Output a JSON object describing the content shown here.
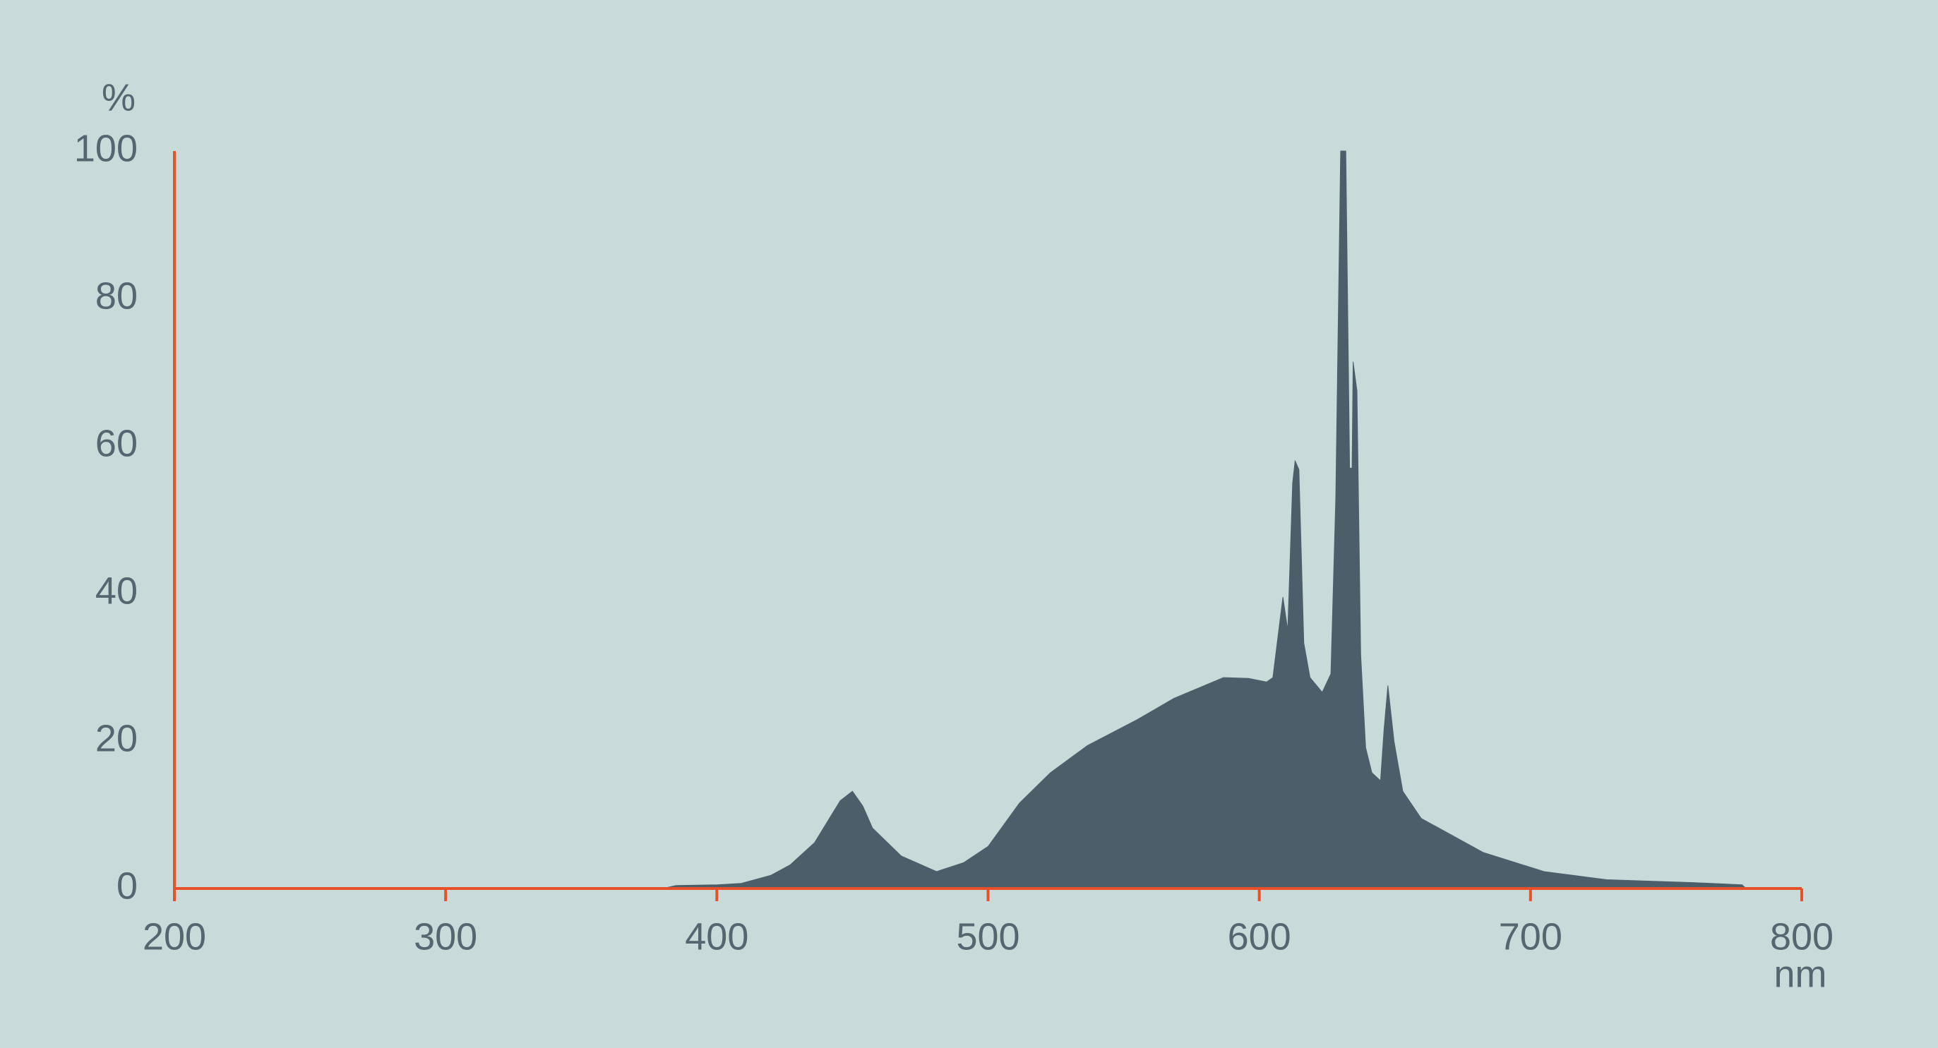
{
  "chart_data": {
    "type": "area",
    "y_label": "%",
    "x_label": "nm",
    "x": [
      380,
      385,
      400,
      409,
      420,
      427,
      436,
      445.5,
      450,
      453.8,
      457.4,
      468,
      481,
      491,
      500,
      511.6,
      523,
      536.7,
      555,
      568.6,
      586.8,
      596,
      602.7,
      605,
      608.7,
      610.5,
      612.3,
      613.2,
      614.6,
      616.4,
      618.7,
      623.2,
      626.4,
      628.2,
      630,
      631.9,
      633.3,
      634.2,
      634.6,
      636,
      637.4,
      639.2,
      641.5,
      644.7,
      646,
      647.4,
      649.7,
      652.9,
      659.7,
      682.5,
      705,
      728,
      760,
      778,
      779.5
    ],
    "y": [
      0,
      0.4,
      0.5,
      0.7,
      1.8,
      3.2,
      6.2,
      11.9,
      13.2,
      11.2,
      8.2,
      4.4,
      2.3,
      3.5,
      5.7,
      11.6,
      15.7,
      19.4,
      22.9,
      25.8,
      28.6,
      28.5,
      28,
      28.6,
      39.5,
      35,
      55,
      58,
      56.8,
      33.3,
      28.6,
      26.6,
      29.1,
      53,
      100,
      100,
      57,
      57,
      71.4,
      67.5,
      31.7,
      19.1,
      15.7,
      14.6,
      21.6,
      27.5,
      19.9,
      13.2,
      9.5,
      4.9,
      2.3,
      1.2,
      0.8,
      0.5,
      0
    ],
    "color": "#4d5e6b",
    "axis_color": "#e8502a",
    "xlim": [
      200,
      800
    ],
    "xticks": [
      200,
      300,
      400,
      500,
      600,
      700,
      800
    ],
    "ylim": [
      0,
      100
    ],
    "yticks": [
      0,
      20,
      40,
      60,
      80,
      100
    ],
    "grid": false
  }
}
